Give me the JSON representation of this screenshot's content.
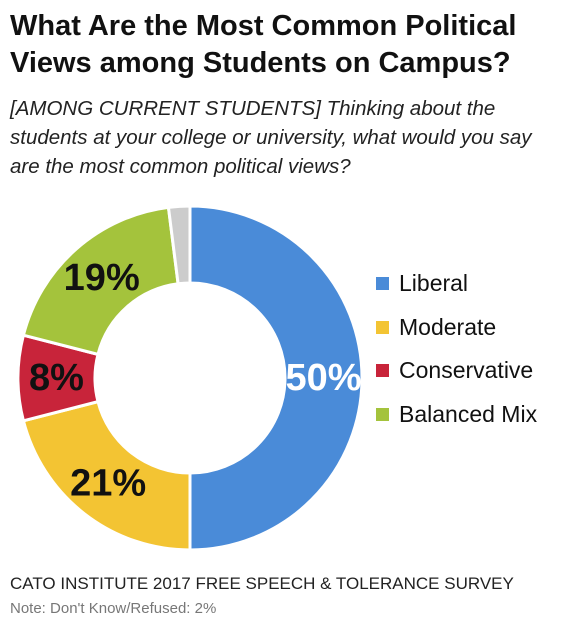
{
  "title": "What Are the Most Common Political Views among Students on Campus?",
  "subtitle": "[AMONG CURRENT STUDENTS] Thinking about the students at your college or university, what would you say are the most common political views?",
  "footer": "CATO INSTITUTE 2017 FREE SPEECH & TOLERANCE SURVEY",
  "note": "Note: Don't Know/Refused: 2%",
  "chart_data": {
    "type": "pie",
    "style": "donut",
    "title": "What Are the Most Common Political Views among Students on Campus?",
    "slices": [
      {
        "label": "Liberal",
        "value": 50,
        "display": "50%",
        "color": "#4a8bd8",
        "text_color": "#ffffff"
      },
      {
        "label": "Moderate",
        "value": 21,
        "display": "21%",
        "color": "#f3c433",
        "text_color": "#111111"
      },
      {
        "label": "Conservative",
        "value": 8,
        "display": "8%",
        "color": "#c8243a",
        "text_color": "#111111"
      },
      {
        "label": "Balanced Mix",
        "value": 19,
        "display": "19%",
        "color": "#a4c33c",
        "text_color": "#111111"
      },
      {
        "label": "",
        "value": 2,
        "display": "",
        "color": "#cccccc",
        "text_color": "#111111"
      }
    ],
    "legend": {
      "placement": "right",
      "entries": [
        {
          "label": "Liberal",
          "color": "#4a8bd8"
        },
        {
          "label": "Moderate",
          "color": "#f3c433"
        },
        {
          "label": "Conservative",
          "color": "#c8243a"
        },
        {
          "label": "Balanced Mix",
          "color": "#a4c33c"
        }
      ]
    }
  }
}
